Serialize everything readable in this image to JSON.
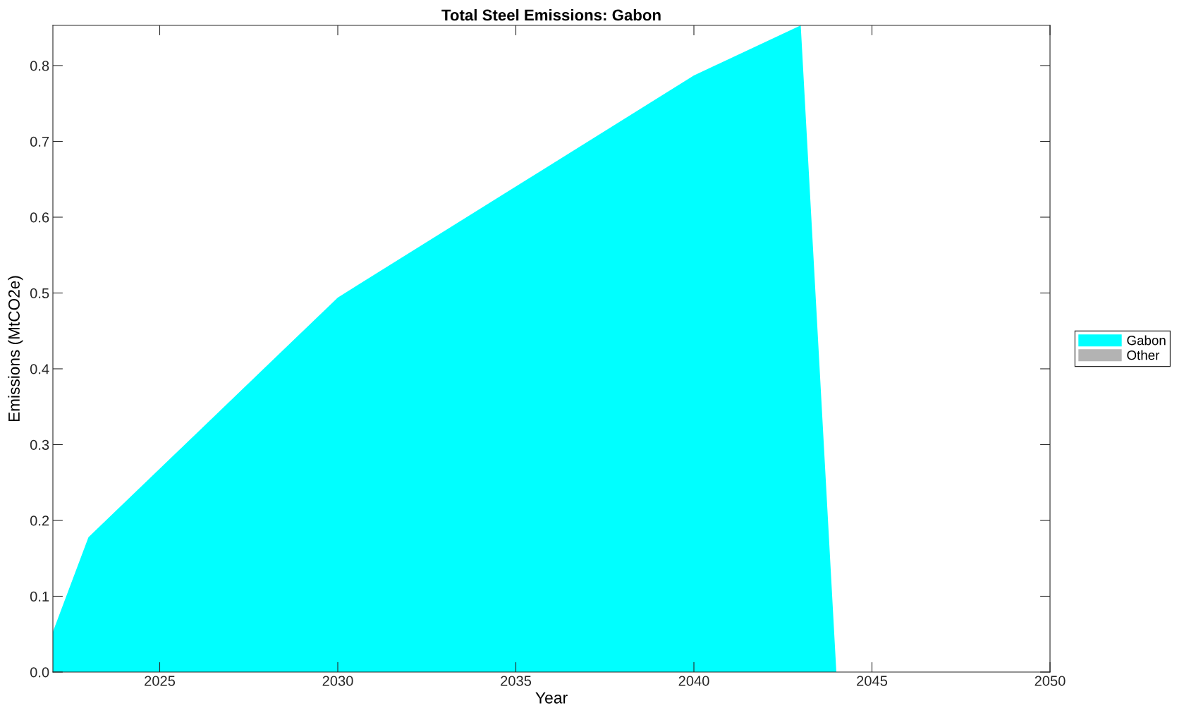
{
  "chart_data": {
    "type": "area",
    "title": "Total Steel Emissions: Gabon",
    "xlabel": "Year",
    "ylabel": "Emissions (MtCO2e)",
    "x": [
      2022,
      2023,
      2030,
      2040,
      2043,
      2044,
      2050
    ],
    "series": [
      {
        "name": "Gabon",
        "color": "#00ffff",
        "values": [
          0.053,
          0.178,
          0.494,
          0.787,
          0.853,
          0,
          0
        ]
      },
      {
        "name": "Other",
        "color": "#b3b3b3",
        "values": [
          null,
          null,
          null,
          null,
          null,
          null,
          null
        ]
      }
    ],
    "xlim": [
      2022,
      2050
    ],
    "ylim": [
      0,
      0.853
    ],
    "xticks": [
      2025,
      2030,
      2035,
      2040,
      2045,
      2050
    ],
    "yticks": [
      {
        "value": 0,
        "label": "0.0"
      },
      0.1,
      0.2,
      0.3,
      0.4,
      0.5,
      0.6,
      0.7,
      0.8
    ],
    "legend": "right"
  }
}
